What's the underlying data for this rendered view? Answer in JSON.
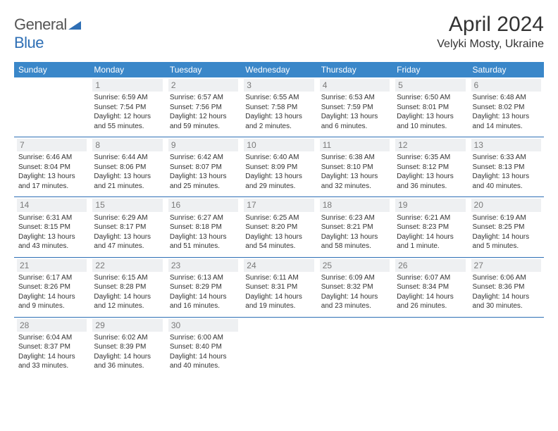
{
  "logo": {
    "word1": "General",
    "word2": "Blue"
  },
  "title": "April 2024",
  "location": "Velyki Mosty, Ukraine",
  "colors": {
    "header_bg": "#3a87c9",
    "header_text": "#ffffff",
    "rule": "#2e6fb5",
    "daynum_bg": "#eef0f2",
    "daynum_text": "#7a7a7a",
    "body_text": "#333333",
    "logo_gray": "#555555",
    "logo_blue": "#2e6fb5"
  },
  "days": [
    "Sunday",
    "Monday",
    "Tuesday",
    "Wednesday",
    "Thursday",
    "Friday",
    "Saturday"
  ],
  "weeks": [
    [
      null,
      {
        "n": "1",
        "sr": "6:59 AM",
        "ss": "7:54 PM",
        "dl": "12 hours and 55 minutes."
      },
      {
        "n": "2",
        "sr": "6:57 AM",
        "ss": "7:56 PM",
        "dl": "12 hours and 59 minutes."
      },
      {
        "n": "3",
        "sr": "6:55 AM",
        "ss": "7:58 PM",
        "dl": "13 hours and 2 minutes."
      },
      {
        "n": "4",
        "sr": "6:53 AM",
        "ss": "7:59 PM",
        "dl": "13 hours and 6 minutes."
      },
      {
        "n": "5",
        "sr": "6:50 AM",
        "ss": "8:01 PM",
        "dl": "13 hours and 10 minutes."
      },
      {
        "n": "6",
        "sr": "6:48 AM",
        "ss": "8:02 PM",
        "dl": "13 hours and 14 minutes."
      }
    ],
    [
      {
        "n": "7",
        "sr": "6:46 AM",
        "ss": "8:04 PM",
        "dl": "13 hours and 17 minutes."
      },
      {
        "n": "8",
        "sr": "6:44 AM",
        "ss": "8:06 PM",
        "dl": "13 hours and 21 minutes."
      },
      {
        "n": "9",
        "sr": "6:42 AM",
        "ss": "8:07 PM",
        "dl": "13 hours and 25 minutes."
      },
      {
        "n": "10",
        "sr": "6:40 AM",
        "ss": "8:09 PM",
        "dl": "13 hours and 29 minutes."
      },
      {
        "n": "11",
        "sr": "6:38 AM",
        "ss": "8:10 PM",
        "dl": "13 hours and 32 minutes."
      },
      {
        "n": "12",
        "sr": "6:35 AM",
        "ss": "8:12 PM",
        "dl": "13 hours and 36 minutes."
      },
      {
        "n": "13",
        "sr": "6:33 AM",
        "ss": "8:13 PM",
        "dl": "13 hours and 40 minutes."
      }
    ],
    [
      {
        "n": "14",
        "sr": "6:31 AM",
        "ss": "8:15 PM",
        "dl": "13 hours and 43 minutes."
      },
      {
        "n": "15",
        "sr": "6:29 AM",
        "ss": "8:17 PM",
        "dl": "13 hours and 47 minutes."
      },
      {
        "n": "16",
        "sr": "6:27 AM",
        "ss": "8:18 PM",
        "dl": "13 hours and 51 minutes."
      },
      {
        "n": "17",
        "sr": "6:25 AM",
        "ss": "8:20 PM",
        "dl": "13 hours and 54 minutes."
      },
      {
        "n": "18",
        "sr": "6:23 AM",
        "ss": "8:21 PM",
        "dl": "13 hours and 58 minutes."
      },
      {
        "n": "19",
        "sr": "6:21 AM",
        "ss": "8:23 PM",
        "dl": "14 hours and 1 minute."
      },
      {
        "n": "20",
        "sr": "6:19 AM",
        "ss": "8:25 PM",
        "dl": "14 hours and 5 minutes."
      }
    ],
    [
      {
        "n": "21",
        "sr": "6:17 AM",
        "ss": "8:26 PM",
        "dl": "14 hours and 9 minutes."
      },
      {
        "n": "22",
        "sr": "6:15 AM",
        "ss": "8:28 PM",
        "dl": "14 hours and 12 minutes."
      },
      {
        "n": "23",
        "sr": "6:13 AM",
        "ss": "8:29 PM",
        "dl": "14 hours and 16 minutes."
      },
      {
        "n": "24",
        "sr": "6:11 AM",
        "ss": "8:31 PM",
        "dl": "14 hours and 19 minutes."
      },
      {
        "n": "25",
        "sr": "6:09 AM",
        "ss": "8:32 PM",
        "dl": "14 hours and 23 minutes."
      },
      {
        "n": "26",
        "sr": "6:07 AM",
        "ss": "8:34 PM",
        "dl": "14 hours and 26 minutes."
      },
      {
        "n": "27",
        "sr": "6:06 AM",
        "ss": "8:36 PM",
        "dl": "14 hours and 30 minutes."
      }
    ],
    [
      {
        "n": "28",
        "sr": "6:04 AM",
        "ss": "8:37 PM",
        "dl": "14 hours and 33 minutes."
      },
      {
        "n": "29",
        "sr": "6:02 AM",
        "ss": "8:39 PM",
        "dl": "14 hours and 36 minutes."
      },
      {
        "n": "30",
        "sr": "6:00 AM",
        "ss": "8:40 PM",
        "dl": "14 hours and 40 minutes."
      },
      null,
      null,
      null,
      null
    ]
  ],
  "labels": {
    "sunrise": "Sunrise:",
    "sunset": "Sunset:",
    "daylight": "Daylight:"
  }
}
